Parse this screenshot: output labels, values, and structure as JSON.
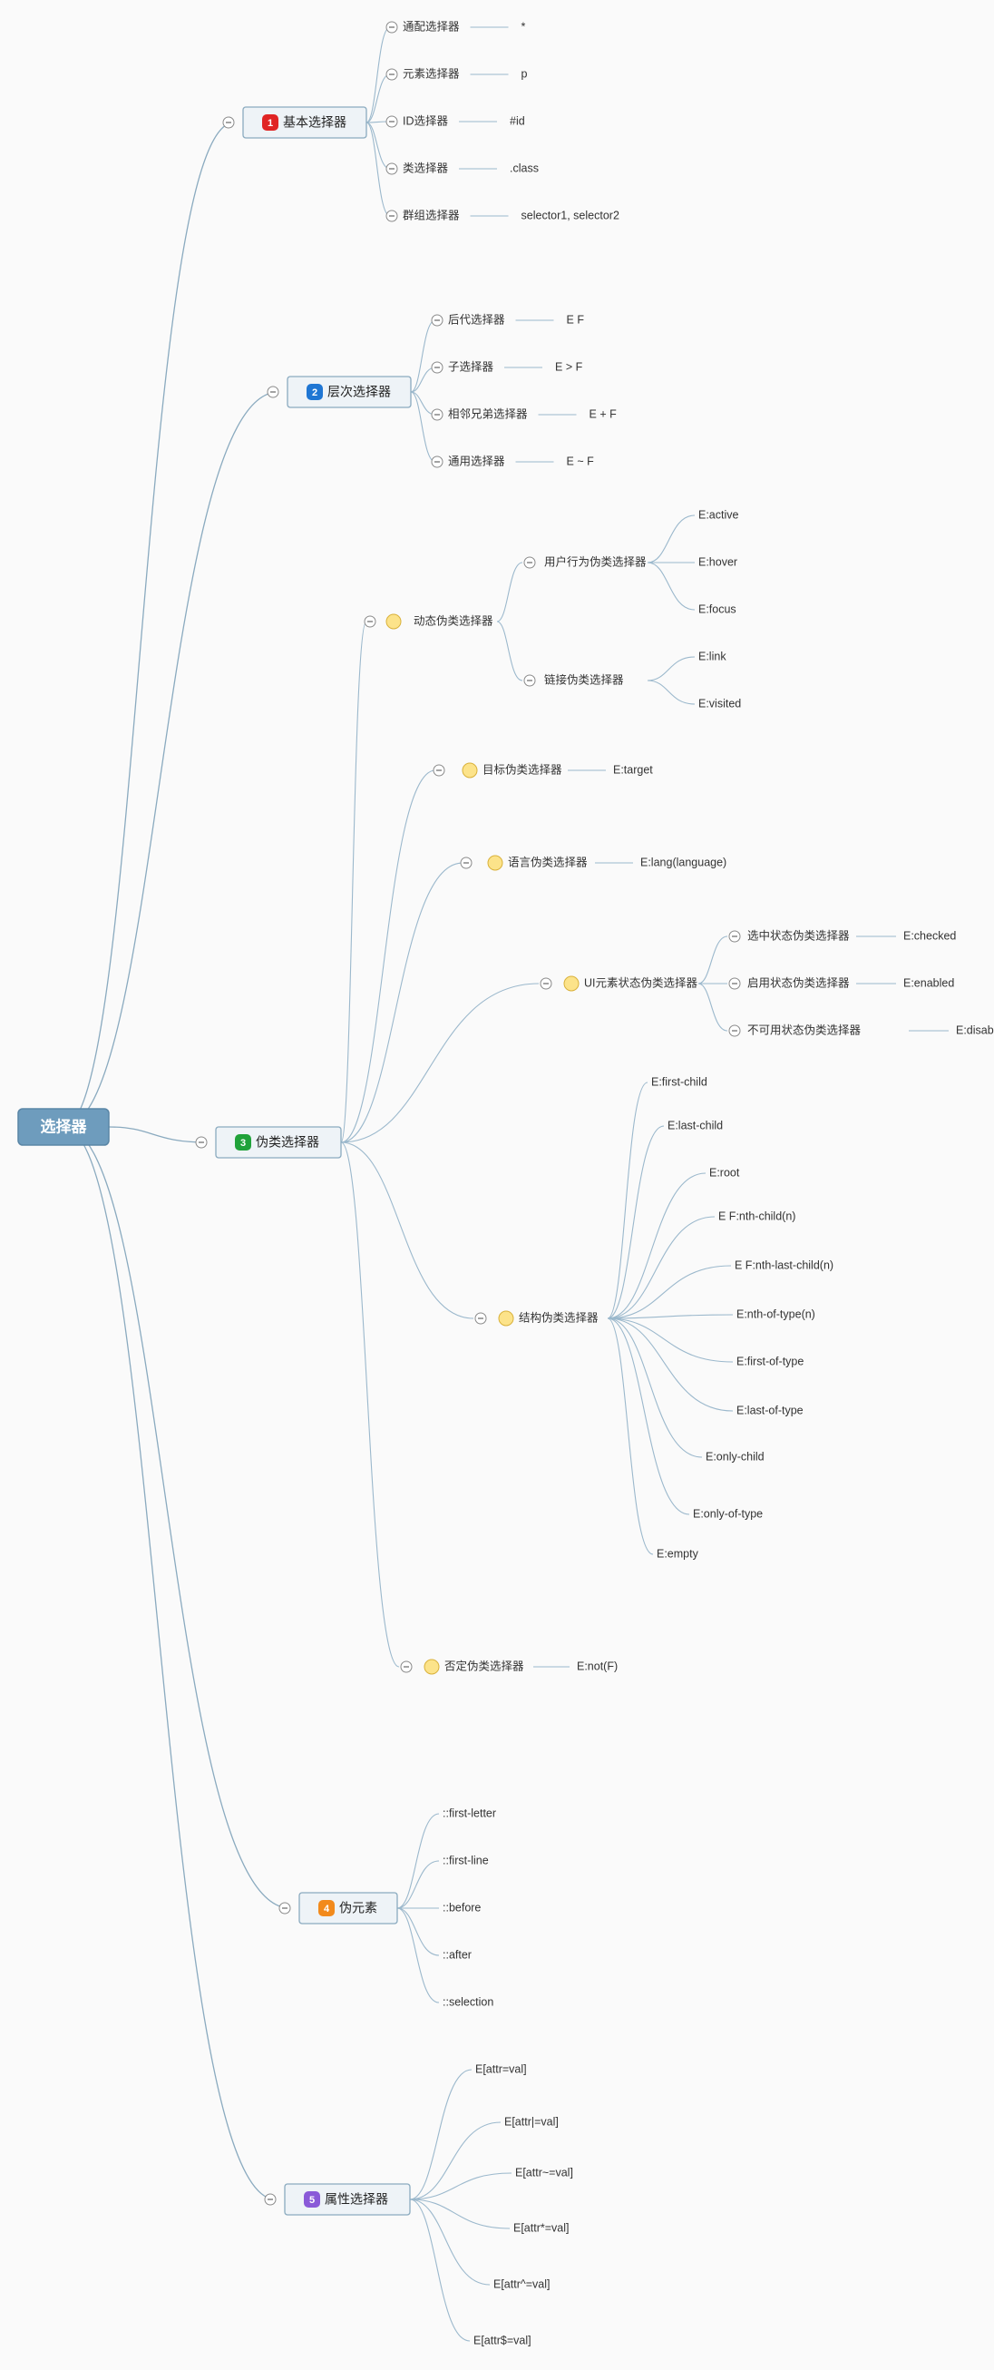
{
  "root": {
    "label": "选择器"
  },
  "colors": {
    "root": "#6e9cbd",
    "badges": [
      "#e02424",
      "#1f76d3",
      "#20a23a",
      "#f28a1c",
      "#8a5ad8"
    ],
    "bulb": "#fce38a"
  },
  "topics": [
    {
      "number": "1",
      "label": "基本选择器",
      "children": [
        {
          "label": "通配选择器",
          "value": "*"
        },
        {
          "label": "元素选择器",
          "value": "p"
        },
        {
          "label": "ID选择器",
          "value": "#id"
        },
        {
          "label": "类选择器",
          "value": ".class"
        },
        {
          "label": "群组选择器",
          "value": "selector1, selector2"
        }
      ]
    },
    {
      "number": "2",
      "label": "层次选择器",
      "children": [
        {
          "label": "后代选择器",
          "value": "E F"
        },
        {
          "label": "子选择器",
          "value": "E > F"
        },
        {
          "label": "相邻兄弟选择器",
          "value": "E + F"
        },
        {
          "label": "通用选择器",
          "value": "E ~ F"
        }
      ]
    },
    {
      "number": "3",
      "label": "伪类选择器",
      "children": [
        {
          "label": "动态伪类选择器",
          "groups": [
            {
              "label": "用户行为伪类选择器",
              "items": [
                "E:active",
                "E:hover",
                "E:focus"
              ]
            },
            {
              "label": "链接伪类选择器",
              "items": [
                "E:link",
                "E:visited"
              ]
            }
          ]
        },
        {
          "label": "目标伪类选择器",
          "value": "E:target"
        },
        {
          "label": "语言伪类选择器",
          "value": "E:lang(language)"
        },
        {
          "label": "UI元素状态伪类选择器",
          "pairs": [
            {
              "label": "选中状态伪类选择器",
              "value": "E:checked"
            },
            {
              "label": "启用状态伪类选择器",
              "value": "E:enabled"
            },
            {
              "label": "不可用状态伪类选择器",
              "value": "E:disabled"
            }
          ]
        },
        {
          "label": "结构伪类选择器",
          "items": [
            "E:first-child",
            "E:last-child",
            "E:root",
            "E F:nth-child(n)",
            "E F:nth-last-child(n)",
            "E:nth-of-type(n)",
            "E:first-of-type",
            "E:last-of-type",
            "E:only-child",
            "E:only-of-type",
            "E:empty"
          ]
        },
        {
          "label": "否定伪类选择器",
          "value": "E:not(F)"
        }
      ]
    },
    {
      "number": "4",
      "label": "伪元素",
      "items": [
        "::first-letter",
        "::first-line",
        "::before",
        "::after",
        "::selection"
      ]
    },
    {
      "number": "5",
      "label": "属性选择器",
      "items": [
        "E[attr=val]",
        "E[attr|=val]",
        "E[attr~=val]",
        "E[attr*=val]",
        "E[attr^=val]",
        "E[attr$=val]"
      ]
    }
  ]
}
